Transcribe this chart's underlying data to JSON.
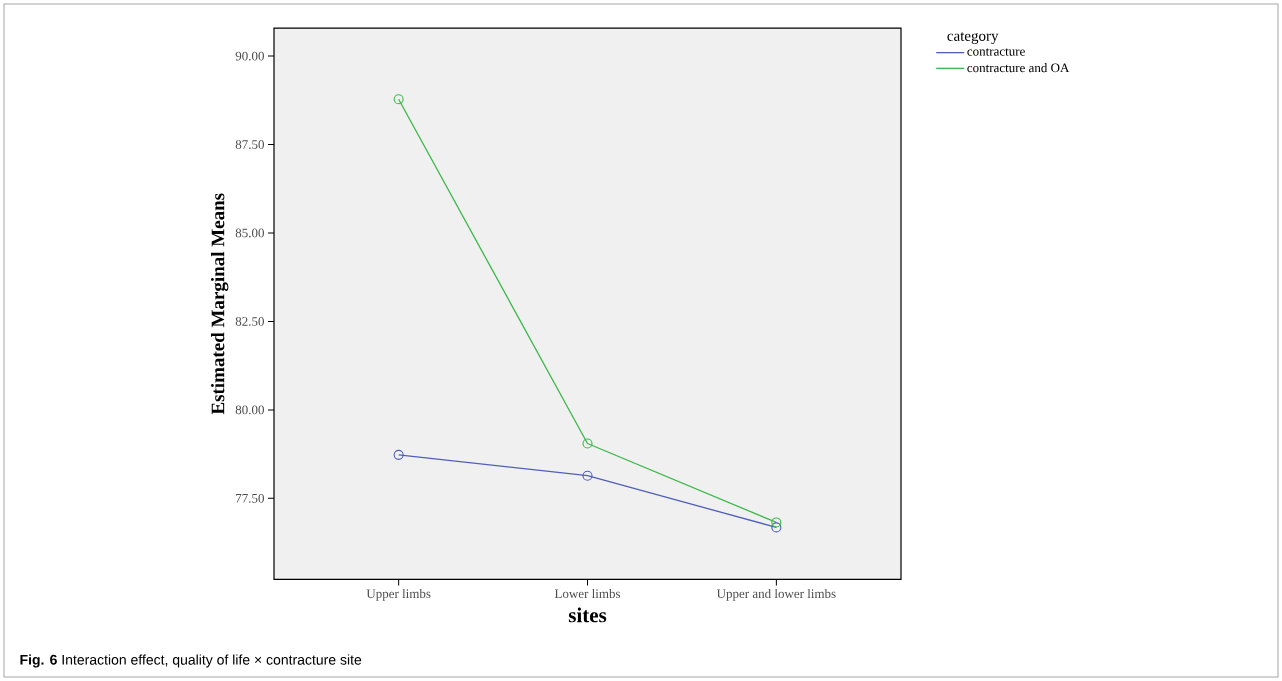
{
  "chart_data": {
    "type": "line",
    "xlabel": "sites",
    "ylabel": "Estimated Marginal Means",
    "legend_title": "category",
    "categories": [
      "Upper limbs",
      "Lower limbs",
      "Upper and lower limbs"
    ],
    "series": [
      {
        "name": "contracture",
        "color": "#4f5fb8",
        "values": [
          78.73,
          78.14,
          76.68
        ]
      },
      {
        "name": "contracture and OA",
        "color": "#3cb84a",
        "values": [
          88.78,
          79.05,
          76.82
        ]
      }
    ],
    "ylim": [
      75.21,
      90.79
    ],
    "yticks": [
      {
        "value": 77.5,
        "label": "77.50"
      },
      {
        "value": 80,
        "label": "80.00"
      },
      {
        "value": 82.5,
        "label": "82.50"
      },
      {
        "value": 85,
        "label": "85.00"
      },
      {
        "value": 87.5,
        "label": "87.50"
      },
      {
        "value": 90,
        "label": "90.00"
      }
    ],
    "marker": "circle",
    "line_style": "solid",
    "grid": false,
    "legend": "top right",
    "annotations": [
      "**Fig. 6** Interaction effect, quality of life × contracture site"
    ]
  }
}
